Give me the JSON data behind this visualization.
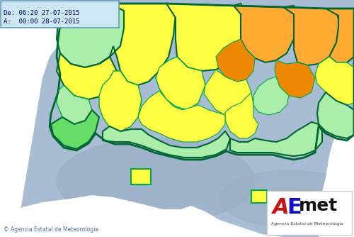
{
  "figsize": [
    5.0,
    3.34
  ],
  "dpi": 100,
  "bg_color": "#a8bdd4",
  "colors": {
    "yellow": "#ffff44",
    "light_green": "#aaeeaa",
    "med_green": "#66dd66",
    "dark_green_border": "#006633",
    "thin_green_border": "#00aa44",
    "orange": "#ffaa33",
    "dark_orange": "#ee8800",
    "white": "#ffffff",
    "sea_glow": "#8899bb",
    "info_bg": "#cce8f4",
    "info_border": "#6699bb",
    "info_text": "#000066"
  },
  "info_text_line1": "De: 06:20 27-07-2015",
  "info_text_line2": "A:  00:00 28-07-2015",
  "copyright_text": "© Agencia Estatal de Meteorología",
  "aemet_sub": "Agencia Estatal de Meteorología"
}
